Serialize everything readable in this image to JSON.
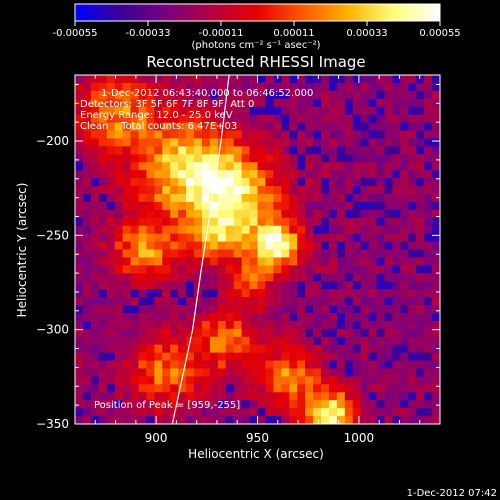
{
  "chart_data": {
    "type": "heatmap",
    "title": "Reconstructed RHESSI Image",
    "xlabel": "Heliocentric X (arcsec)",
    "ylabel": "Heliocentric Y (arcsec)",
    "xlim": [
      860,
      1040
    ],
    "ylim": [
      -350,
      -165
    ],
    "xticks": [
      900,
      950,
      1000
    ],
    "yticks": [
      -350,
      -300,
      -250,
      -200
    ],
    "colorbar": {
      "label": "(photons cm⁻² s⁻¹ asec⁻²)",
      "range": [
        -0.00055,
        0.00055
      ],
      "tick_labels": [
        "-0.00055",
        "-0.00033",
        "-0.00011",
        "0.00011",
        "0.00033",
        "0.00055"
      ],
      "colormap": [
        "#0000ff",
        "#3c0096",
        "#78007f",
        "#b40040",
        "#e60000",
        "#ff5a00",
        "#ffb400",
        "#ffff80",
        "#ffffff"
      ]
    },
    "annotations": [
      "1-Dec-2012 06:43:40.000 to 06:46:52.000",
      "Detectors: 3F 5F 6F 7F 8F 9F, Att 0",
      "Energy Range: 12.0 - 25.0 keV",
      "Clean    Total counts: 6.47E+03"
    ],
    "peak_label": "Position of Peak = [959,-255]",
    "peak": [
      959,
      -255
    ],
    "limb_curve": {
      "x": [
        936,
        932,
        927,
        922,
        918,
        913,
        908
      ],
      "y": [
        -165,
        -200,
        -235,
        -270,
        -300,
        -325,
        -350
      ]
    },
    "sources": [
      {
        "x": 959,
        "y": -255,
        "amp": 1.0,
        "w": 9
      },
      {
        "x": 915,
        "y": -215,
        "amp": 0.82,
        "w": 18
      },
      {
        "x": 940,
        "y": -228,
        "amp": 0.72,
        "w": 15
      },
      {
        "x": 895,
        "y": -258,
        "amp": 0.62,
        "w": 11
      },
      {
        "x": 930,
        "y": -250,
        "amp": 0.55,
        "w": 10
      },
      {
        "x": 880,
        "y": -185,
        "amp": 0.58,
        "w": 14
      },
      {
        "x": 985,
        "y": -345,
        "amp": 0.95,
        "w": 9
      },
      {
        "x": 965,
        "y": -325,
        "amp": 0.6,
        "w": 11
      },
      {
        "x": 905,
        "y": -322,
        "amp": 0.55,
        "w": 13
      },
      {
        "x": 935,
        "y": -305,
        "amp": 0.6,
        "w": 10
      },
      {
        "x": 945,
        "y": -275,
        "amp": 0.45,
        "w": 8
      }
    ]
  },
  "footer": {
    "timestamp": "1-Dec-2012 07:42"
  }
}
